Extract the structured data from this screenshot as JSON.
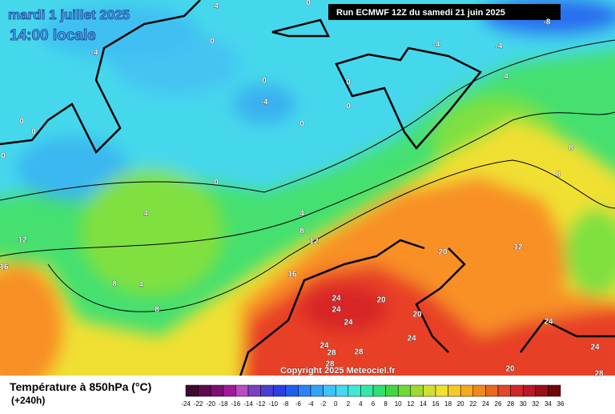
{
  "header": {
    "date": "mardi 1 juillet 2025",
    "time": "14:00 locale",
    "run": "Run ECMWF 12Z du samedi 21 juin 2025"
  },
  "copyright": "Copyright 2025 Meteociel.fr",
  "legend": {
    "title": "Température à 850hPa (°C)",
    "lead": "(+240h)",
    "ticks": [
      -24,
      -22,
      -20,
      -18,
      -16,
      -14,
      -12,
      -10,
      -8,
      -6,
      -4,
      -2,
      0,
      2,
      4,
      6,
      8,
      10,
      12,
      14,
      16,
      18,
      20,
      22,
      24,
      26,
      28,
      30,
      32,
      34,
      36
    ],
    "colors": [
      "#3d0b2e",
      "#5c0a4e",
      "#7d0f74",
      "#a0189c",
      "#b84cc0",
      "#7a3fc0",
      "#4a3fd0",
      "#2a40e0",
      "#1f5ff0",
      "#2a84f5",
      "#33a3f7",
      "#3fc3f7",
      "#45d8f0",
      "#40e8d0",
      "#36e8a8",
      "#30e070",
      "#40d840",
      "#70d838",
      "#a0d830",
      "#d0e030",
      "#f0e030",
      "#f8c828",
      "#f8a820",
      "#f08820",
      "#e86820",
      "#e04828",
      "#d02828",
      "#b81828",
      "#981018",
      "#700808"
    ]
  },
  "contour_labels": [
    4,
    0,
    -4,
    0,
    -4,
    -4,
    -8,
    0,
    -4,
    0,
    0,
    0,
    0,
    0,
    0,
    4,
    0,
    4,
    4,
    8,
    12,
    8,
    8,
    12,
    16,
    16,
    8,
    4,
    8,
    20,
    12,
    24,
    24,
    20,
    24,
    20,
    24,
    24,
    28,
    28,
    28,
    20,
    24,
    24,
    28
  ]
}
